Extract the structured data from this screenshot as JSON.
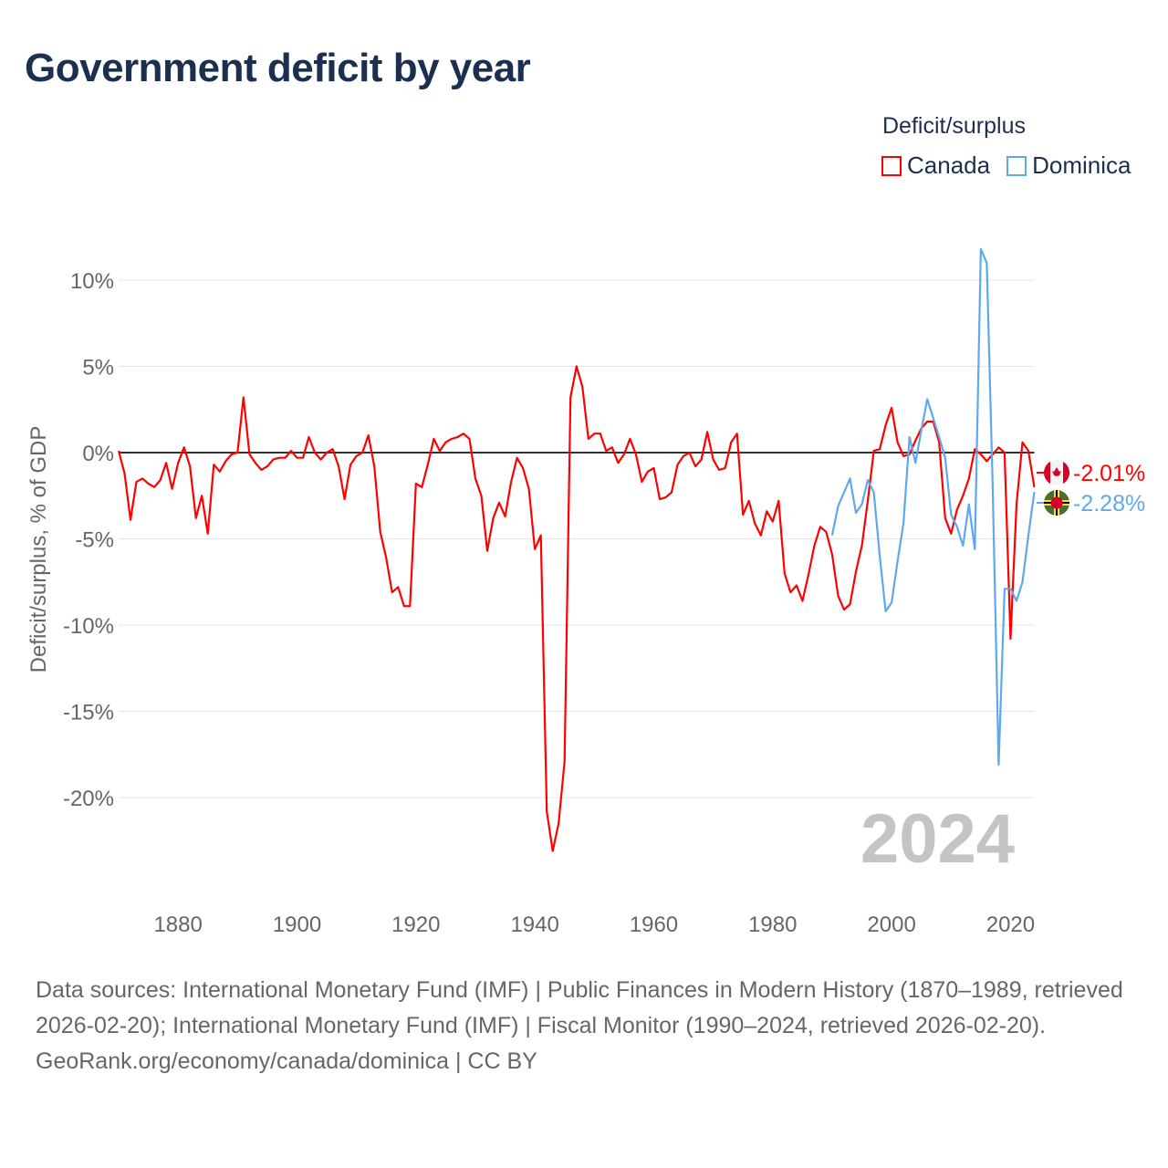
{
  "title": "Government deficit by year",
  "legend": {
    "title": "Deficit/surplus",
    "items": [
      {
        "label": "Canada",
        "color": "#ff0000"
      },
      {
        "label": "Dominica",
        "color": "#5ea9ee"
      }
    ]
  },
  "footer": {
    "sources": "Data sources: International Monetary Fund (IMF) | Public Finances in Modern History (1870–1989, retrieved 2026-02-20); International Monetary Fund (IMF) | Fiscal Monitor (1990–2024, retrieved 2026-02-20).",
    "credit": "GeoRank.org/economy/canada/dominica | CC BY"
  },
  "chart_data": {
    "type": "line",
    "title": "Government deficit by year",
    "xlabel": "",
    "ylabel": "Deficit/surplus, % of GDP",
    "xlim": [
      1870,
      2024
    ],
    "ylim": [
      -25,
      12
    ],
    "year_watermark": "2024",
    "x_ticks": [
      "1880",
      "1900",
      "1920",
      "1940",
      "1960",
      "1980",
      "2000",
      "2020"
    ],
    "y_ticks": [
      {
        "v": 10,
        "label": "10%"
      },
      {
        "v": 5,
        "label": "5%"
      },
      {
        "v": 0,
        "label": "0%"
      },
      {
        "v": -5,
        "label": "-5%"
      },
      {
        "v": -10,
        "label": "-10%"
      },
      {
        "v": -15,
        "label": "-15%"
      },
      {
        "v": -20,
        "label": "-20%"
      }
    ],
    "grid": true,
    "series": [
      {
        "name": "Canada",
        "color": "#ff0000",
        "start_year": 1870,
        "end_label": "-2.01%",
        "values": [
          0.1,
          -1.2,
          -3.9,
          -1.7,
          -1.5,
          -1.8,
          -2.0,
          -1.6,
          -0.6,
          -2.1,
          -0.6,
          0.3,
          -0.8,
          -3.8,
          -2.5,
          -4.7,
          -0.7,
          -1.1,
          -0.5,
          -0.1,
          0.0,
          3.2,
          -0.1,
          -0.6,
          -1.0,
          -0.8,
          -0.4,
          -0.3,
          -0.3,
          0.1,
          -0.3,
          -0.3,
          0.9,
          0.0,
          -0.4,
          0.0,
          0.2,
          -0.8,
          -2.7,
          -0.7,
          -0.2,
          0.0,
          1.0,
          -0.8,
          -4.6,
          -6.1,
          -8.1,
          -7.8,
          -8.9,
          -8.9,
          -1.8,
          -2.0,
          -0.7,
          0.8,
          0.1,
          0.6,
          0.8,
          0.9,
          1.1,
          0.8,
          -1.5,
          -2.5,
          -5.7,
          -3.8,
          -2.9,
          -3.7,
          -1.7,
          -0.3,
          -0.9,
          -2.1,
          -5.6,
          -4.8,
          -20.8,
          -23.1,
          -21.5,
          -17.9,
          3.2,
          5.0,
          3.8,
          0.8,
          1.1,
          1.1,
          0.1,
          0.3,
          -0.6,
          -0.1,
          0.8,
          -0.1,
          -1.7,
          -1.1,
          -0.9,
          -2.7,
          -2.6,
          -2.3,
          -0.7,
          -0.2,
          0.0,
          -0.8,
          -0.4,
          1.2,
          -0.4,
          -1.0,
          -0.9,
          0.6,
          1.1,
          -3.6,
          -2.8,
          -4.1,
          -4.8,
          -3.4,
          -4.0,
          -2.8,
          -7.0,
          -8.1,
          -7.7,
          -8.6,
          -7.1,
          -5.4,
          -4.3,
          -4.6,
          -5.9,
          -8.3,
          -9.1,
          -8.8,
          -6.9,
          -5.4,
          -2.8,
          0.1,
          0.2,
          1.6,
          2.6,
          0.6,
          -0.2,
          -0.1,
          0.7,
          1.4,
          1.8,
          1.8,
          0.6,
          -3.8,
          -4.7,
          -3.3,
          -2.5,
          -1.5,
          0.2,
          -0.1,
          -0.5,
          -0.1,
          0.3,
          0.0,
          -10.8,
          -3.0,
          0.6,
          0.1,
          -2.01
        ]
      },
      {
        "name": "Dominica",
        "color": "#5ea9ee",
        "start_year": 1990,
        "end_label": "-2.28%",
        "values": [
          -4.8,
          -3.1,
          -2.3,
          -1.5,
          -3.5,
          -3.0,
          -1.6,
          -2.3,
          -6.0,
          -9.2,
          -8.7,
          -6.3,
          -4.1,
          0.9,
          -0.6,
          1.3,
          3.1,
          2.0,
          0.9,
          -0.3,
          -3.6,
          -4.3,
          -5.4,
          -3.0,
          -5.6,
          11.8,
          11.0,
          -2.0,
          -18.1,
          -7.9,
          -7.9,
          -8.6,
          -7.5,
          -4.8,
          -2.28
        ]
      }
    ]
  }
}
